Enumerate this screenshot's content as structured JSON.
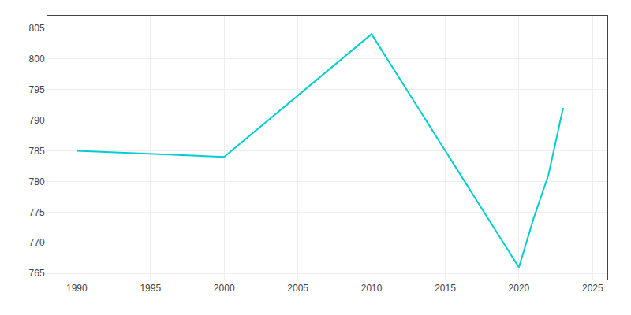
{
  "chart_data": {
    "type": "line",
    "x": [
      1990,
      2000,
      2010,
      2020,
      2021,
      2022,
      2023
    ],
    "values": [
      785,
      784,
      804,
      766,
      774,
      781,
      792
    ],
    "color": "#00CED1",
    "xlim": [
      1988,
      2026
    ],
    "ylim": [
      764,
      807
    ],
    "xticks": [
      1990,
      1995,
      2000,
      2005,
      2010,
      2015,
      2020,
      2025
    ],
    "yticks": [
      765,
      770,
      775,
      780,
      785,
      790,
      795,
      800,
      805
    ],
    "grid": true
  }
}
